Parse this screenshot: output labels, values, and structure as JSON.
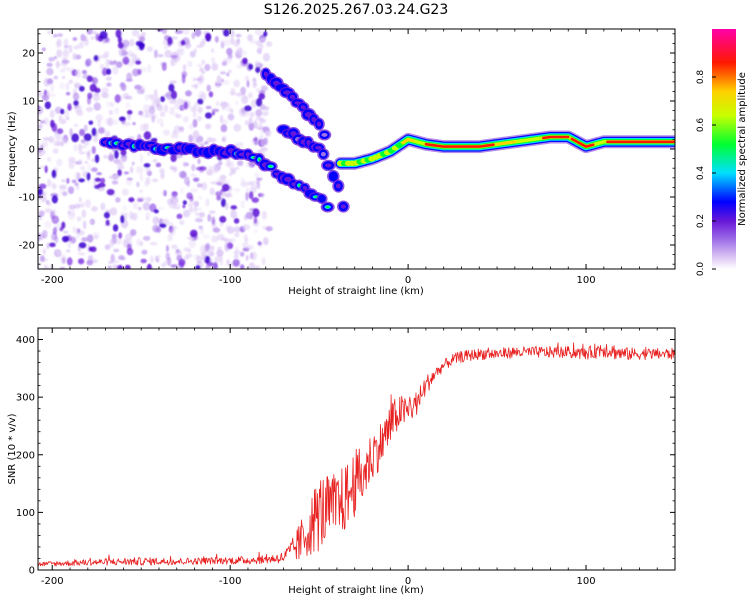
{
  "title": "S126.2025.267.03.24.G23",
  "chart_data": [
    {
      "type": "heatmap",
      "name": "spectrogram",
      "xlabel": "Height of straight line (km)",
      "ylabel": "Frequency (Hz)",
      "xlim": [
        -208,
        150
      ],
      "ylim": [
        -25,
        25
      ],
      "xticks": [
        -200,
        -100,
        0,
        100
      ],
      "yticks": [
        -20,
        -10,
        0,
        10,
        20
      ],
      "colorbar": {
        "label": "Normalized spectral amplitude",
        "range": [
          0,
          1
        ],
        "ticks": [
          0.0,
          0.2,
          0.4,
          0.6,
          0.8
        ]
      },
      "features": [
        {
          "label": "main signal track",
          "x": [
            -170,
            -150,
            -130,
            -110,
            -100,
            -90,
            -80,
            -70,
            -60,
            -50,
            -45
          ],
          "y": [
            1.5,
            0.5,
            0,
            -0.5,
            -0.5,
            -1.5,
            -3,
            -6,
            -8,
            -10,
            -12
          ]
        },
        {
          "label": "upper branch",
          "x": [
            -80,
            -70,
            -60,
            -50,
            -47
          ],
          "y": [
            16,
            12,
            9,
            5,
            3
          ]
        },
        {
          "label": "second branch",
          "x": [
            -70,
            -60,
            -50,
            -45,
            -40,
            -37,
            -35
          ],
          "y": [
            4,
            2,
            0,
            -3,
            -7,
            -11,
            -13
          ]
        },
        {
          "label": "ionosphere-free signal",
          "x": [
            -38,
            -30,
            -20,
            -10,
            0,
            10,
            20,
            40,
            60,
            80,
            90,
            100,
            110,
            120,
            150
          ],
          "y": [
            -3,
            -3,
            -2,
            -0.5,
            2,
            1,
            0.5,
            0.5,
            1.5,
            2.5,
            2.5,
            0.5,
            1.5,
            1.5,
            1.5
          ]
        }
      ]
    },
    {
      "type": "line",
      "name": "snr",
      "xlabel": "Height of straight line (km)",
      "ylabel": "SNR (10 * v/v)",
      "xlim": [
        -208,
        150
      ],
      "ylim": [
        0,
        420
      ],
      "xticks": [
        -200,
        -100,
        0,
        100
      ],
      "yticks": [
        0,
        100,
        200,
        300,
        400
      ],
      "color": "#e82020",
      "series": [
        {
          "name": "SNR",
          "x": [
            -208,
            -190,
            -170,
            -150,
            -130,
            -110,
            -90,
            -80,
            -70,
            -65,
            -60,
            -55,
            -50,
            -45,
            -40,
            -35,
            -30,
            -25,
            -20,
            -15,
            -10,
            -5,
            0,
            5,
            10,
            15,
            20,
            25,
            30,
            40,
            50,
            60,
            70,
            80,
            90,
            100,
            110,
            120,
            130,
            140,
            150
          ],
          "y": [
            10,
            12,
            14,
            15,
            15,
            16,
            17,
            18,
            22,
            35,
            50,
            75,
            100,
            105,
            110,
            125,
            150,
            165,
            200,
            220,
            250,
            275,
            275,
            290,
            320,
            340,
            355,
            365,
            370,
            375,
            375,
            378,
            378,
            378,
            378,
            375,
            385,
            375,
            375,
            375,
            375
          ],
          "noise": [
            4,
            5,
            6,
            7,
            6,
            6,
            7,
            7,
            10,
            20,
            40,
            50,
            70,
            60,
            60,
            60,
            60,
            50,
            45,
            40,
            40,
            30,
            25,
            22,
            18,
            12,
            10,
            10,
            10,
            10,
            10,
            10,
            10,
            10,
            10,
            10,
            16,
            12,
            10,
            10,
            10
          ]
        }
      ]
    }
  ]
}
